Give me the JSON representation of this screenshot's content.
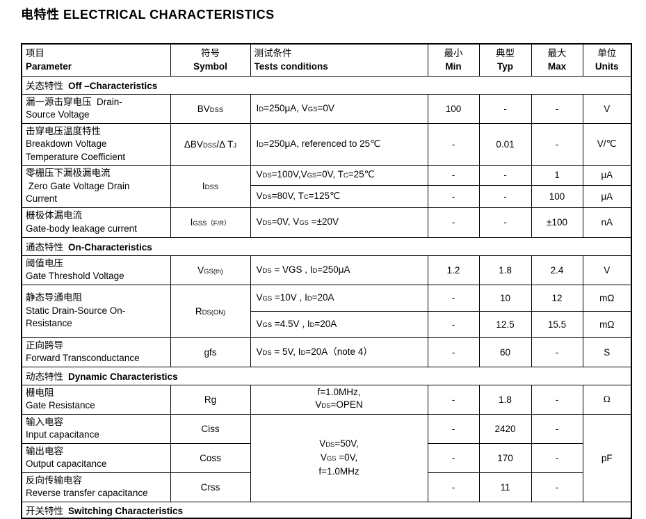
{
  "page": {
    "title": "电特性 ELECTRICAL CHARACTERISTICS"
  },
  "header": {
    "param_zh": "项目",
    "param_en": "Parameter",
    "symbol_zh": "符号",
    "symbol_en": "Symbol",
    "cond_zh": "测试条件",
    "cond_en": "Tests conditions",
    "min_zh": "最小",
    "min_en": "Min",
    "typ_zh": "典型",
    "typ_en": "Typ",
    "max_zh": "最大",
    "max_en": "Max",
    "units_zh": "单位",
    "units_en": "Units"
  },
  "sections": {
    "off": {
      "zh": "关态特性",
      "en": "Off –Characteristics"
    },
    "on": {
      "zh": "通态特性",
      "en": "On-Characteristics"
    },
    "dynamic": {
      "zh": "动态特性",
      "en": "Dynamic Characteristics"
    },
    "switching": {
      "zh": "开关特性",
      "en": "Switching Characteristics"
    }
  },
  "rows": {
    "bvdss": {
      "param": [
        "漏一源击穿电压  Drain-",
        "Source Voltage"
      ],
      "symbol": [
        {
          "t": "BV"
        },
        {
          "t": "DSS",
          "s": 1
        }
      ],
      "cond": [
        {
          "t": "I"
        },
        {
          "t": "D",
          "s": 1
        },
        {
          "t": "=250μA, V"
        },
        {
          "t": "GS",
          "s": 1
        },
        {
          "t": "=0V"
        }
      ],
      "min": "100",
      "typ": "-",
      "max": "-",
      "units": "V"
    },
    "dbvdss": {
      "param": [
        "击穿电压温度特性",
        "Breakdown Voltage",
        "Temperature Coefficient"
      ],
      "symbol": [
        {
          "t": "ΔBV"
        },
        {
          "t": "DSS",
          "s": 1
        },
        {
          "t": "/Δ T"
        },
        {
          "t": "J",
          "s": 1
        }
      ],
      "cond": [
        {
          "t": "I"
        },
        {
          "t": "D",
          "s": 1
        },
        {
          "t": "=250μA, referenced to 25℃"
        }
      ],
      "min": "-",
      "typ": "0.01",
      "max": "-",
      "units": "V/℃"
    },
    "idss": {
      "param": [
        "零栅压下漏极漏电流",
        " Zero Gate Voltage Drain",
        "Current"
      ],
      "symbol": [
        {
          "t": "I"
        },
        {
          "t": "DSS",
          "s": 1
        }
      ],
      "sub1": {
        "cond": [
          {
            "t": "V"
          },
          {
            "t": "DS",
            "s": 1
          },
          {
            "t": "=100V,V"
          },
          {
            "t": "GS",
            "s": 1
          },
          {
            "t": "=0V, T"
          },
          {
            "t": "C",
            "s": 1
          },
          {
            "t": "=25℃"
          }
        ],
        "min": "-",
        "typ": "-",
        "max": "1",
        "units": "μA"
      },
      "sub2": {
        "cond": [
          {
            "t": "V"
          },
          {
            "t": "DS",
            "s": 1
          },
          {
            "t": "=80V, T"
          },
          {
            "t": "C",
            "s": 1
          },
          {
            "t": "=125℃"
          }
        ],
        "min": "-",
        "typ": "-",
        "max": "100",
        "units": "μA"
      }
    },
    "igss": {
      "param": [
        "栅极体漏电流",
        "Gate-body leakage current"
      ],
      "symbol": [
        {
          "t": "I"
        },
        {
          "t": "GSS",
          "s": 1
        },
        {
          "t": "（F/R）",
          "s": 1
        }
      ],
      "cond": [
        {
          "t": "V"
        },
        {
          "t": "DS",
          "s": 1
        },
        {
          "t": "=0V, V"
        },
        {
          "t": "GS",
          "s": 1
        },
        {
          "t": " =±20V"
        }
      ],
      "min": "-",
      "typ": "-",
      "max": "±100",
      "units": "nA"
    },
    "vgsth": {
      "param": [
        "阈值电压",
        "Gate Threshold Voltage"
      ],
      "symbol": [
        {
          "t": "V"
        },
        {
          "t": "GS(th)",
          "s": 1
        }
      ],
      "cond": [
        {
          "t": "V"
        },
        {
          "t": "DS",
          "s": 1
        },
        {
          "t": " = VGS , I"
        },
        {
          "t": "D",
          "s": 1
        },
        {
          "t": "=250μA"
        }
      ],
      "min": "1.2",
      "typ": "1.8",
      "max": "2.4",
      "units": "V"
    },
    "rdson": {
      "param": [
        "静态导通电阻",
        "Static Drain-Source On-",
        "Resistance"
      ],
      "symbol": [
        {
          "t": "R"
        },
        {
          "t": "DS(ON)",
          "s": 1
        }
      ],
      "sub1": {
        "cond": [
          {
            "t": "V"
          },
          {
            "t": "GS",
            "s": 1
          },
          {
            "t": " =10V , I"
          },
          {
            "t": "D",
            "s": 1
          },
          {
            "t": "=20A"
          }
        ],
        "min": "-",
        "typ": "10",
        "max": "12",
        "units": "mΩ"
      },
      "sub2": {
        "cond": [
          {
            "t": "V"
          },
          {
            "t": "GS",
            "s": 1
          },
          {
            "t": " =4.5V , I"
          },
          {
            "t": "D",
            "s": 1
          },
          {
            "t": "=20A"
          }
        ],
        "min": "-",
        "typ": "12.5",
        "max": "15.5",
        "units": "mΩ"
      }
    },
    "gfs": {
      "param": [
        "正向跨导",
        "Forward Transconductance"
      ],
      "symbol": [
        {
          "t": "gfs"
        }
      ],
      "cond": [
        {
          "t": "V"
        },
        {
          "t": "DS",
          "s": 1
        },
        {
          "t": " = 5V, I"
        },
        {
          "t": "D",
          "s": 1
        },
        {
          "t": "=20A（note 4）"
        }
      ],
      "min": "-",
      "typ": "60",
      "max": "-",
      "units": "S"
    },
    "rg": {
      "param": [
        "栅电阻",
        "Gate Resistance"
      ],
      "symbol": [
        {
          "t": "Rg"
        }
      ],
      "cond": [
        {
          "t": "f=1.0MHz,"
        },
        {
          "br": 1
        },
        {
          "t": "V"
        },
        {
          "t": "DS",
          "s": 1
        },
        {
          "t": "=OPEN"
        }
      ],
      "min": "-",
      "typ": "1.8",
      "max": "-",
      "units": "Ω"
    },
    "ciss": {
      "param": [
        "输入电容",
        "Input capacitance"
      ],
      "symbol": [
        {
          "t": "Ciss"
        }
      ],
      "min": "-",
      "typ": "2420",
      "max": "-"
    },
    "coss": {
      "param": [
        "输出电容",
        "Output capacitance"
      ],
      "symbol": [
        {
          "t": "Coss"
        }
      ],
      "min": "-",
      "typ": "170",
      "max": "-"
    },
    "crss": {
      "param": [
        "反向传输电容",
        "Reverse transfer capacitance"
      ],
      "symbol": [
        {
          "t": "Crss"
        }
      ],
      "min": "-",
      "typ": "11",
      "max": "-"
    },
    "cap_shared": {
      "cond": [
        {
          "t": "V"
        },
        {
          "t": "DS",
          "s": 1
        },
        {
          "t": "=50V,"
        },
        {
          "br": 1
        },
        {
          "t": "V"
        },
        {
          "t": "GS",
          "s": 1
        },
        {
          "t": " =0V,"
        },
        {
          "br": 1
        },
        {
          "t": "f=1.0MHz"
        }
      ],
      "units": "pF"
    }
  }
}
